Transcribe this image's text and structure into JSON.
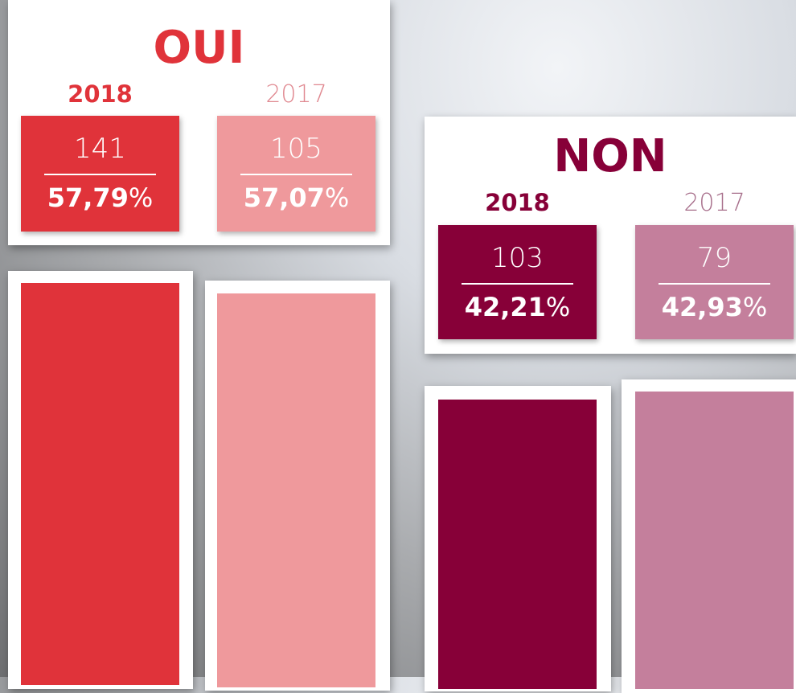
{
  "panels": [
    {
      "title": "OUI",
      "columns": [
        {
          "year": "2018",
          "count": "141",
          "percent": "57,79",
          "percent_unit": "%"
        },
        {
          "year": "2017",
          "count": "105",
          "percent": "57,07",
          "percent_unit": "%"
        }
      ]
    },
    {
      "title": "NON",
      "columns": [
        {
          "year": "2018",
          "count": "103",
          "percent": "42,21",
          "percent_unit": "%"
        },
        {
          "year": "2017",
          "count": "79",
          "percent": "42,93",
          "percent_unit": "%"
        }
      ]
    }
  ]
}
